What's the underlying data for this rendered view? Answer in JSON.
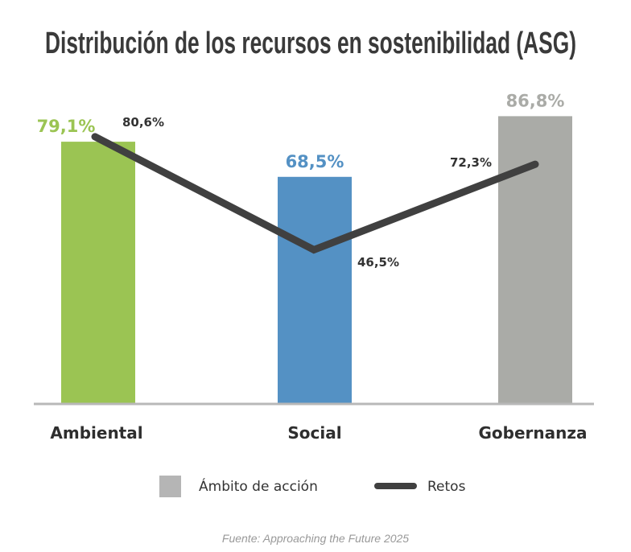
{
  "chart_data": {
    "type": "bar",
    "title": "Distribución de los recursos en sostenibilidad (ASG)",
    "categories": [
      "Ambiental",
      "Social",
      "Gobernanza"
    ],
    "series": [
      {
        "name": "Ámbito de acción",
        "type": "bar",
        "values": [
          79.1,
          68.5,
          86.8
        ],
        "labels": [
          "79,1%",
          "68,5%",
          "86,8%"
        ],
        "colors": [
          "#9bc453",
          "#5491c4",
          "#aaaba7"
        ]
      },
      {
        "name": "Retos",
        "type": "line",
        "values": [
          80.6,
          46.5,
          72.3
        ],
        "labels": [
          "80,6%",
          "46,5%",
          "72,3%"
        ],
        "color": "#404040"
      }
    ],
    "ylim": [
      0,
      100
    ],
    "grid": false,
    "legend": "bottom",
    "legend_swatch_color": "#b5b5b5",
    "source": "Fuente: Approaching the Future 2025"
  }
}
